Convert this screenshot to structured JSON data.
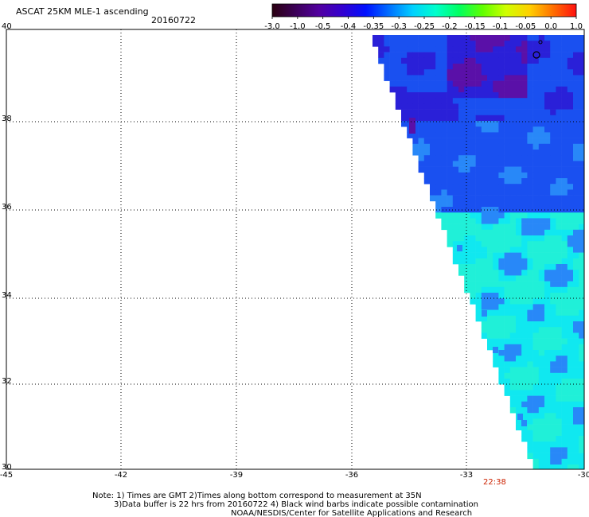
{
  "header": {
    "title": "ASCAT 25KM MLE-1 ascending",
    "date": "20160722"
  },
  "colorbar": {
    "labels": [
      "-3.0",
      "-1.0",
      "-0.5",
      "-0.4",
      "-0.35",
      "-0.3",
      "-0.25",
      "-0.2",
      "-0.15",
      "-0.1",
      "-0.05",
      "0.0",
      "1.0"
    ],
    "colors": [
      "#2a0010",
      "#3c0058",
      "#5200a0",
      "#3300d0",
      "#0010ff",
      "#0070ff",
      "#00d0ff",
      "#00ffcc",
      "#00ff60",
      "#60ff00",
      "#d0ff00",
      "#ffd000",
      "#ff7000",
      "#ff1010"
    ]
  },
  "axes": {
    "lon_labels": [
      "-45",
      "-42",
      "-39",
      "-36",
      "-33",
      "-30"
    ],
    "lat_labels": [
      "30",
      "32",
      "34",
      "36",
      "38",
      "40"
    ],
    "lon_range": [
      -45,
      -30
    ],
    "lat_range": [
      30,
      40
    ]
  },
  "swath_time": "22:38",
  "notes": {
    "line1": "Note: 1) Times are GMT 2)Times along bottom correspond to measurement at 35N",
    "line2": "3)Data buffer is 22 hrs from 20160722 4) Black wind barbs indicate possible contamination",
    "line3": "NOAA/NESDIS/Center for Satellite Applications and Research"
  },
  "palette": {
    "deep_purple": "#5a10a8",
    "dark_blue": "#2a20d8",
    "blue": "#1a50f0",
    "mid_blue": "#2888f8",
    "cyan": "#10e8f0",
    "aqua": "#20f0d8",
    "grid": "#000000"
  }
}
